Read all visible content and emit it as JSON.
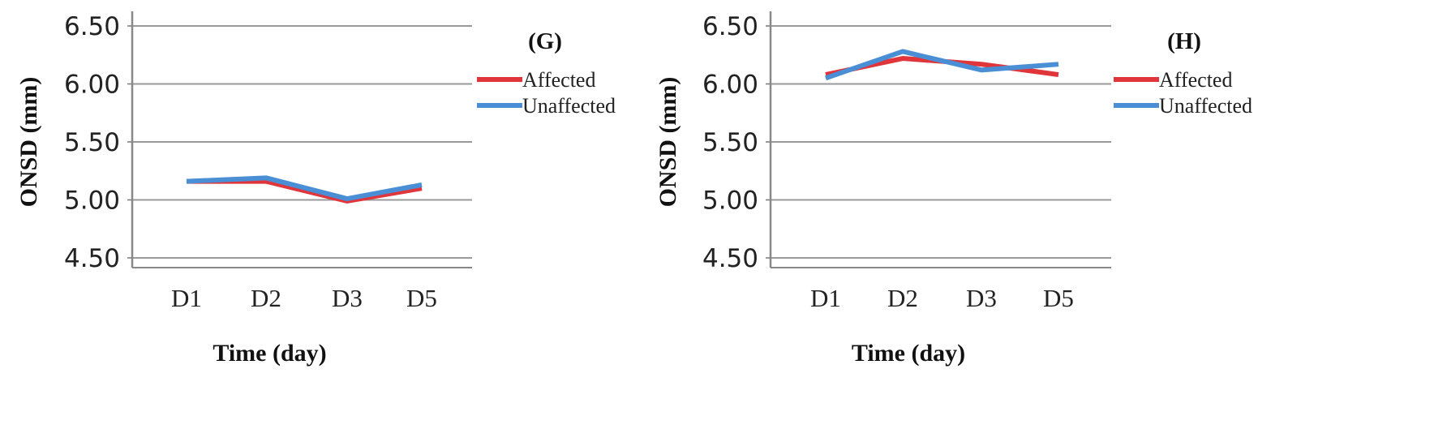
{
  "chart_data": [
    {
      "type": "line",
      "panel_label": "(G)",
      "categories": [
        "D1",
        "D2",
        "D3",
        "D5"
      ],
      "series": [
        {
          "name": "Affected",
          "color": "#e0353b",
          "values": [
            5.16,
            5.16,
            4.99,
            5.1
          ]
        },
        {
          "name": "Unaffected",
          "color": "#4a8fd6",
          "values": [
            5.16,
            5.19,
            5.01,
            5.13
          ]
        }
      ],
      "xlabel": "Time (day)",
      "ylabel": "ONSD (mm)",
      "ylim": [
        4.5,
        6.5
      ],
      "yticks": [
        "4.50",
        "5.00",
        "5.50",
        "6.00",
        "6.50"
      ],
      "grid": true,
      "legend": "right"
    },
    {
      "type": "line",
      "panel_label": "(H)",
      "categories": [
        "D1",
        "D2",
        "D3",
        "D5"
      ],
      "series": [
        {
          "name": "Affected",
          "color": "#e0353b",
          "values": [
            6.08,
            6.22,
            6.17,
            6.08
          ]
        },
        {
          "name": "Unaffected",
          "color": "#4a8fd6",
          "values": [
            6.05,
            6.28,
            6.12,
            6.17
          ]
        }
      ],
      "xlabel": "Time (day)",
      "ylabel": "ONSD (mm)",
      "ylim": [
        4.5,
        6.5
      ],
      "yticks": [
        "4.50",
        "5.00",
        "5.50",
        "6.00",
        "6.50"
      ],
      "grid": true,
      "legend": "right"
    }
  ]
}
